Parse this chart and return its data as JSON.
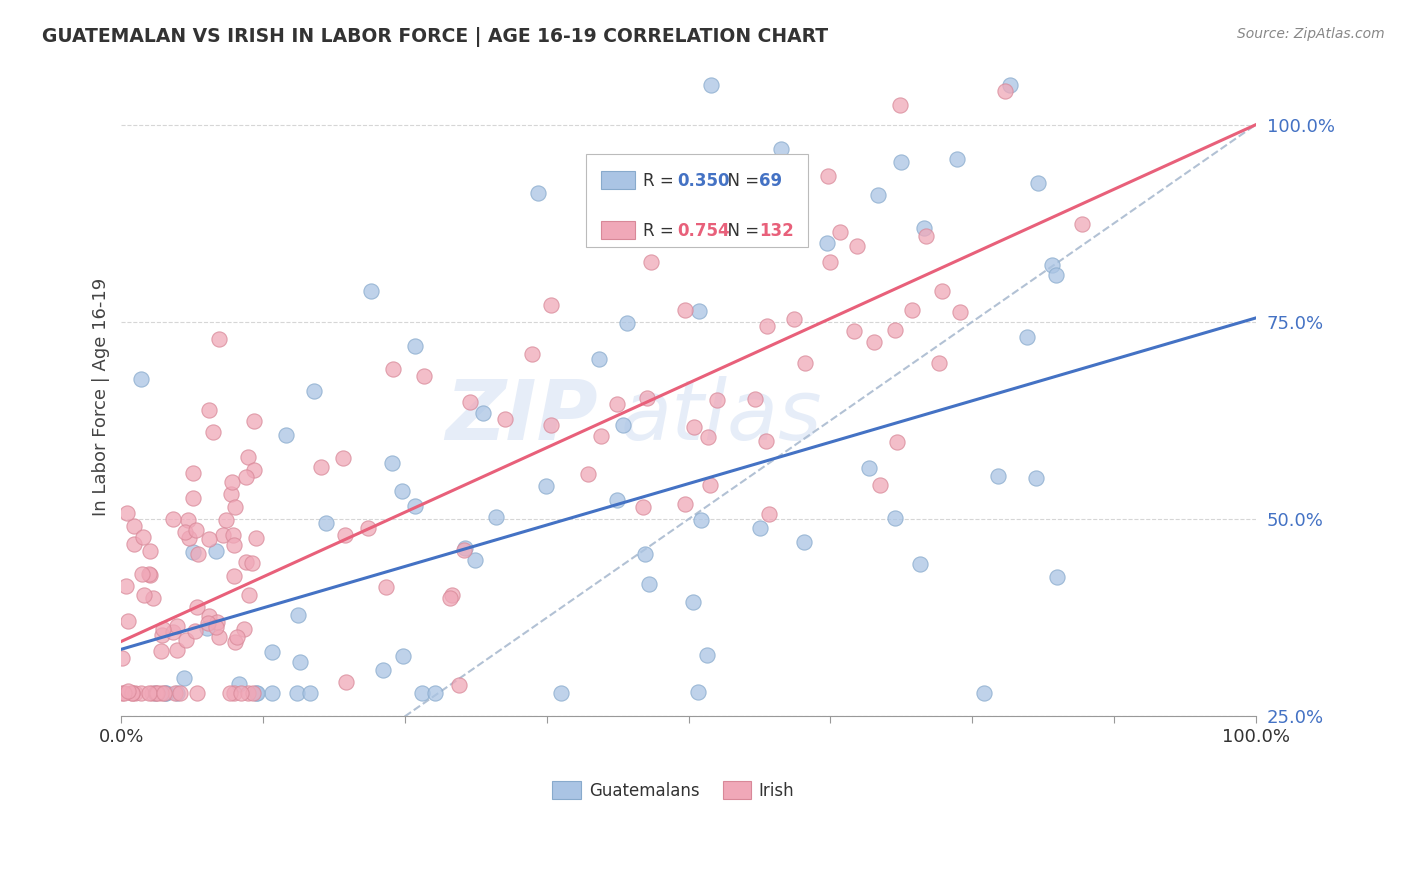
{
  "title": "GUATEMALAN VS IRISH IN LABOR FORCE | AGE 16-19 CORRELATION CHART",
  "source": "Source: ZipAtlas.com",
  "ylabel": "In Labor Force | Age 16-19",
  "watermark": "ZIPatlas",
  "guatemalan_scatter_color": "#aac4e4",
  "guatemalan_edge_color": "#88aacc",
  "irish_scatter_color": "#f0a8b8",
  "irish_edge_color": "#d88898",
  "guatemalan_line_color": "#4472c4",
  "irish_line_color": "#e8607a",
  "diagonal_color": "#aabbd0",
  "guatemalan_R": 0.35,
  "guatemalan_N": 69,
  "irish_R": 0.754,
  "irish_N": 132,
  "guatemalan_intercept": 0.335,
  "guatemalan_slope": 0.42,
  "irish_intercept": 0.345,
  "irish_slope": 0.655,
  "seed": 42,
  "scatter_size": 120,
  "scatter_alpha": 0.75,
  "ytick_color": "#4472c4",
  "xtick_color": "#4472c4"
}
